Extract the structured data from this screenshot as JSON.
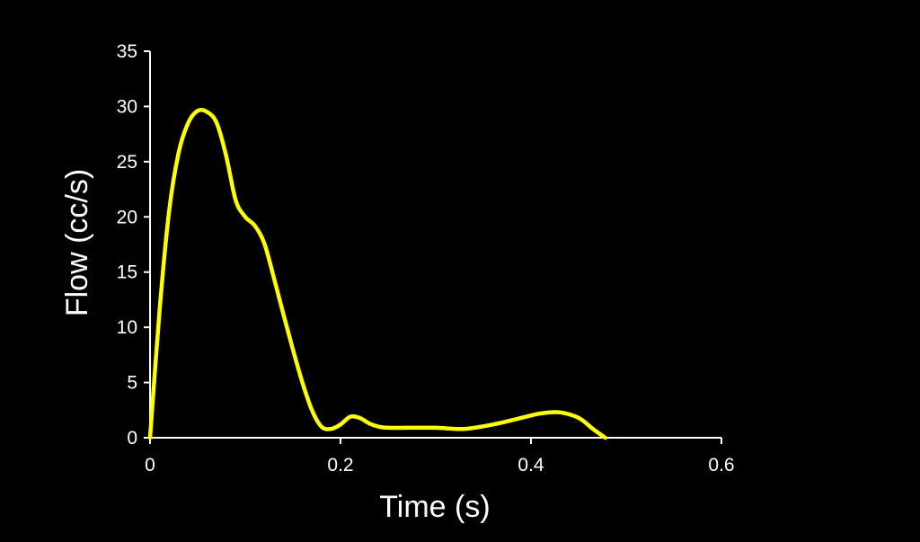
{
  "chart_data": {
    "type": "line",
    "xlabel": "Time (s)",
    "ylabel": "Flow (cc/s)",
    "xlim": [
      0,
      0.6
    ],
    "ylim": [
      0,
      35
    ],
    "x_ticks": [
      0,
      0.2,
      0.4,
      0.6
    ],
    "x_tick_labels": [
      "0",
      "0.2",
      "0.4",
      "0.6"
    ],
    "y_ticks": [
      0,
      5,
      10,
      15,
      20,
      25,
      30,
      35
    ],
    "y_tick_labels": [
      "0",
      "5",
      "10",
      "15",
      "20",
      "25",
      "30",
      "35"
    ],
    "grid": false,
    "legend": "none",
    "colors": {
      "background": "#000000",
      "axes": "#ffffff",
      "line": "#ffff00"
    },
    "series": [
      {
        "x": [
          0,
          0.01,
          0.02,
          0.03,
          0.04,
          0.05,
          0.06,
          0.07,
          0.08,
          0.09,
          0.1,
          0.11,
          0.12,
          0.13,
          0.14,
          0.15,
          0.16,
          0.17,
          0.18,
          0.19,
          0.2,
          0.21,
          0.22,
          0.23,
          0.24,
          0.25,
          0.27,
          0.3,
          0.33,
          0.36,
          0.39,
          0.41,
          0.43,
          0.45,
          0.465,
          0.478
        ],
        "y": [
          0,
          11.5,
          20.5,
          25.8,
          28.5,
          29.6,
          29.5,
          28.5,
          25.5,
          21.5,
          20.0,
          19.2,
          17.6,
          14.5,
          11.2,
          8.0,
          5.0,
          2.5,
          1.0,
          0.8,
          1.2,
          1.9,
          1.8,
          1.3,
          1.0,
          0.9,
          0.9,
          0.9,
          0.8,
          1.2,
          1.8,
          2.2,
          2.3,
          1.8,
          0.8,
          0
        ]
      }
    ]
  }
}
